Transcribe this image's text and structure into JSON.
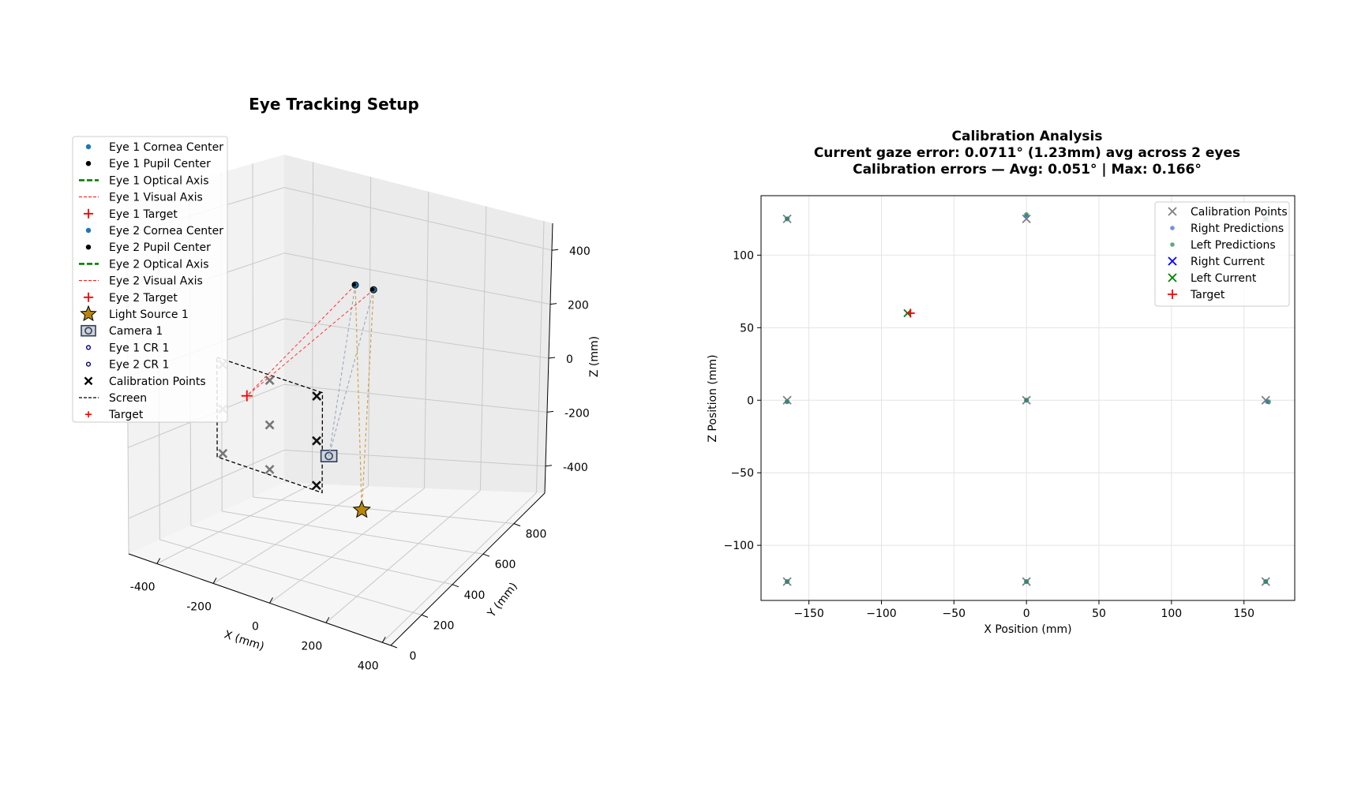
{
  "figure": {
    "left_title": "Eye Tracking Setup",
    "right_title_lines": [
      "Calibration Analysis",
      "Current gaze error: 0.0711° (1.23mm) avg across 2 eyes",
      "Calibration errors — Avg: 0.051° | Max: 0.166°"
    ]
  },
  "chart_data": [
    {
      "type": "scatter",
      "projection": "3d",
      "title": "Eye Tracking Setup",
      "xlabel": "X (mm)",
      "ylabel": "Y (mm)",
      "zlabel": "Z (mm)",
      "xlim": [
        -500,
        430
      ],
      "ylim": [
        0,
        1000
      ],
      "zlim": [
        -500,
        500
      ],
      "x_ticks": [
        "-400",
        "-200",
        "0",
        "200",
        "400"
      ],
      "y_ticks": [
        "0",
        "200",
        "400",
        "600",
        "800"
      ],
      "z_ticks": [
        "-400",
        "-200",
        "0",
        "200",
        "400"
      ],
      "grid": true,
      "legend_position": "upper-left",
      "legend": [
        {
          "label": "Eye 1 Cornea Center",
          "marker": "dot",
          "color": "#1f77b4"
        },
        {
          "label": "Eye 1 Pupil Center",
          "marker": "dot",
          "color": "#000000"
        },
        {
          "label": "Eye 1 Optical Axis",
          "marker": "dashed-line",
          "color": "#008000"
        },
        {
          "label": "Eye 1 Visual Axis",
          "marker": "dashed-thin",
          "color": "#ff0000"
        },
        {
          "label": "Eye 1 Target",
          "marker": "plus",
          "color": "#ff0000"
        },
        {
          "label": "Eye 2 Cornea Center",
          "marker": "dot",
          "color": "#1f77b4"
        },
        {
          "label": "Eye 2 Pupil Center",
          "marker": "dot",
          "color": "#000000"
        },
        {
          "label": "Eye 2 Optical Axis",
          "marker": "dashed-line",
          "color": "#008000"
        },
        {
          "label": "Eye 2 Visual Axis",
          "marker": "dashed-thin",
          "color": "#ff0000"
        },
        {
          "label": "Eye 2 Target",
          "marker": "plus",
          "color": "#ff0000"
        },
        {
          "label": "Light Source 1",
          "marker": "star",
          "color": "#b8860b"
        },
        {
          "label": "Camera 1",
          "marker": "camera",
          "color": "#2f3e5a"
        },
        {
          "label": "Eye 1 CR 1",
          "marker": "ring",
          "color": "#000080"
        },
        {
          "label": "Eye 2 CR 1",
          "marker": "ring",
          "color": "#000080"
        },
        {
          "label": "Calibration Points",
          "marker": "x",
          "color": "#000000"
        },
        {
          "label": "Screen",
          "marker": "dashed-line-black",
          "color": "#000000"
        },
        {
          "label": "Target",
          "marker": "plus-small",
          "color": "#ff0000"
        }
      ],
      "eyes": [
        {
          "name": "Eye 1",
          "cornea_center": [
            -32,
            600,
            270
          ],
          "pupil_center": [
            -32,
            594,
            272
          ]
        },
        {
          "name": "Eye 2",
          "cornea_center": [
            32,
            600,
            270
          ],
          "pupil_center": [
            32,
            594,
            272
          ]
        }
      ],
      "light_source": [
        150,
        320,
        -300
      ],
      "camera": [
        0,
        380,
        -190
      ],
      "target": [
        -80,
        0,
        60
      ],
      "screen_corners": [
        [
          -185,
          0,
          140
        ],
        [
          185,
          0,
          140
        ],
        [
          185,
          0,
          -140
        ],
        [
          -185,
          0,
          -140
        ]
      ],
      "calibration_points": [
        [
          -165,
          0,
          125
        ],
        [
          0,
          0,
          125
        ],
        [
          165,
          0,
          125
        ],
        [
          -165,
          0,
          0
        ],
        [
          0,
          0,
          0
        ],
        [
          165,
          0,
          0
        ],
        [
          -165,
          0,
          -125
        ],
        [
          0,
          0,
          -125
        ],
        [
          165,
          0,
          -125
        ]
      ]
    },
    {
      "type": "scatter",
      "title": "Calibration Analysis",
      "subtitle_lines": [
        "Current gaze error: 0.0711° (1.23mm) avg across 2 eyes",
        "Calibration errors — Avg: 0.051° | Max: 0.166°"
      ],
      "xlabel": "X Position (mm)",
      "ylabel": "Z Position (mm)",
      "xlim": [
        -183,
        185
      ],
      "ylim": [
        -138,
        141
      ],
      "x_ticks": [
        -150,
        -100,
        -50,
        0,
        50,
        100,
        150
      ],
      "y_ticks": [
        -100,
        -50,
        0,
        50,
        100
      ],
      "x_tick_labels": [
        "−150",
        "−100",
        "−50",
        "0",
        "50",
        "100",
        "150"
      ],
      "y_tick_labels": [
        "−100",
        "−50",
        "0",
        "50",
        "100"
      ],
      "grid": true,
      "legend_position": "top-right",
      "series": [
        {
          "name": "Calibration Points",
          "marker": "x",
          "color": "#808080",
          "points": [
            [
              -165,
              125
            ],
            [
              0,
              125
            ],
            [
              165,
              125
            ],
            [
              -165,
              0
            ],
            [
              0,
              0
            ],
            [
              165,
              0
            ],
            [
              -165,
              -125
            ],
            [
              0,
              -125
            ],
            [
              165,
              -125
            ]
          ]
        },
        {
          "name": "Right Predictions",
          "marker": "dot",
          "color": "#4169e1",
          "points": [
            [
              -165,
              125
            ],
            [
              0,
              127
            ],
            [
              165,
              125
            ],
            [
              -165,
              -1
            ],
            [
              0,
              0
            ],
            [
              166,
              -1
            ],
            [
              -165,
              -125
            ],
            [
              0,
              -125
            ],
            [
              165,
              -125
            ]
          ]
        },
        {
          "name": "Left Predictions",
          "marker": "dot",
          "color": "#2e8b57",
          "points": [
            [
              -165,
              125
            ],
            [
              0,
              128
            ],
            [
              165,
              125
            ],
            [
              -165,
              -1
            ],
            [
              0,
              0
            ],
            [
              167,
              -1
            ],
            [
              -165,
              -125
            ],
            [
              0,
              -125
            ],
            [
              165,
              -125
            ]
          ]
        },
        {
          "name": "Right Current",
          "marker": "x",
          "color": "#0000ff",
          "points": [
            [
              -82,
              60
            ]
          ]
        },
        {
          "name": "Left Current",
          "marker": "x",
          "color": "#008000",
          "points": [
            [
              -82,
              60
            ]
          ]
        },
        {
          "name": "Target",
          "marker": "plus",
          "color": "#ff0000",
          "points": [
            [
              -80,
              60
            ]
          ]
        }
      ]
    }
  ]
}
